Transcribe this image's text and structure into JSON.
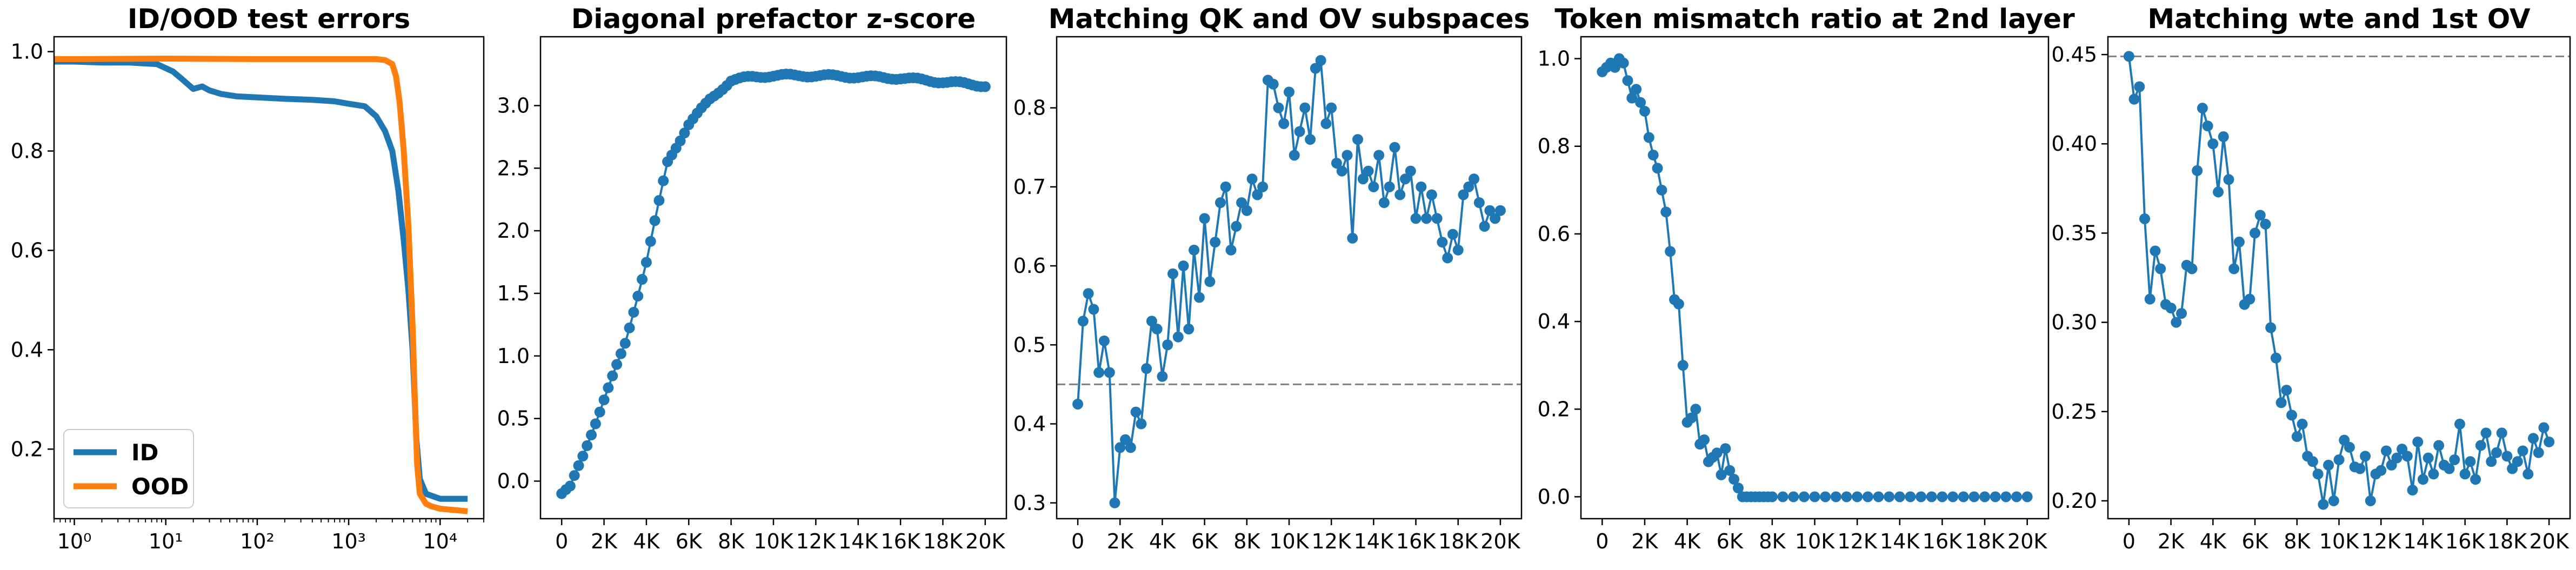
{
  "colors": {
    "blue": "#1f77b4",
    "orange": "#ff7f0e",
    "ref_line": "#7f7f7f"
  },
  "chart_data": [
    {
      "type": "line",
      "title": "ID/OOD test errors",
      "xlabel": "",
      "ylabel": "",
      "xscale": "log",
      "xlim": [
        0.6,
        30000
      ],
      "ylim": [
        0.06,
        1.03
      ],
      "xtick_labels": [
        "10⁰",
        "10¹",
        "10²",
        "10³",
        "10⁴"
      ],
      "xtick_values": [
        1,
        10,
        100,
        1000,
        10000
      ],
      "ytick_labels": [
        "0.2",
        "0.4",
        "0.6",
        "0.8",
        "1.0"
      ],
      "ytick_values": [
        0.2,
        0.4,
        0.6,
        0.8,
        1.0
      ],
      "legend": "lower-left",
      "markers": false,
      "series": [
        {
          "name": "ID",
          "color": "#1f77b4",
          "x": [
            0.6,
            1,
            2,
            4,
            8,
            12,
            15,
            20,
            25,
            30,
            40,
            60,
            100,
            200,
            400,
            700,
            1000,
            1500,
            2000,
            2500,
            3000,
            3500,
            4000,
            4500,
            5000,
            5500,
            6000,
            7000,
            10000,
            20000
          ],
          "y": [
            0.98,
            0.98,
            0.978,
            0.978,
            0.975,
            0.96,
            0.945,
            0.925,
            0.93,
            0.922,
            0.915,
            0.91,
            0.908,
            0.905,
            0.903,
            0.9,
            0.895,
            0.89,
            0.87,
            0.84,
            0.8,
            0.72,
            0.62,
            0.52,
            0.4,
            0.22,
            0.14,
            0.11,
            0.1,
            0.1
          ]
        },
        {
          "name": "OOD",
          "color": "#ff7f0e",
          "x": [
            0.6,
            1,
            10,
            100,
            1000,
            2000,
            2500,
            3000,
            3300,
            3600,
            4000,
            4500,
            5000,
            5300,
            5600,
            6000,
            7000,
            8000,
            10000,
            20000
          ],
          "y": [
            0.985,
            0.985,
            0.986,
            0.985,
            0.985,
            0.985,
            0.983,
            0.975,
            0.95,
            0.9,
            0.8,
            0.65,
            0.45,
            0.3,
            0.17,
            0.11,
            0.09,
            0.085,
            0.08,
            0.075
          ]
        }
      ]
    },
    {
      "type": "line",
      "title": "Diagonal prefactor z-score",
      "xlabel": "",
      "ylabel": "",
      "xlim": [
        -1000,
        21000
      ],
      "ylim": [
        -0.3,
        3.55
      ],
      "xtick_labels": [
        "0",
        "2K",
        "4K",
        "6K",
        "8K",
        "10K",
        "12K",
        "14K",
        "16K",
        "18K",
        "20K"
      ],
      "xtick_values": [
        0,
        2000,
        4000,
        6000,
        8000,
        10000,
        12000,
        14000,
        16000,
        18000,
        20000
      ],
      "ytick_labels": [
        "0.0",
        "0.5",
        "1.0",
        "1.5",
        "2.0",
        "2.5",
        "3.0"
      ],
      "ytick_values": [
        0,
        0.5,
        1,
        1.5,
        2,
        2.5,
        3
      ],
      "markers": true,
      "series": [
        {
          "name": "",
          "color": "#1f77b4",
          "x_range": [
            0,
            20000
          ],
          "x_step": 200,
          "y_anchors": [
            [
              0,
              -0.1
            ],
            [
              400,
              -0.05
            ],
            [
              1000,
              0.2
            ],
            [
              2000,
              0.65
            ],
            [
              3000,
              1.1
            ],
            [
              4000,
              1.75
            ],
            [
              5000,
              2.55
            ],
            [
              6000,
              2.85
            ],
            [
              7000,
              3.05
            ],
            [
              8000,
              3.2
            ],
            [
              9000,
              3.23
            ],
            [
              10000,
              3.24
            ],
            [
              12000,
              3.24
            ],
            [
              14000,
              3.23
            ],
            [
              16000,
              3.22
            ],
            [
              18000,
              3.19
            ],
            [
              20000,
              3.16
            ]
          ]
        }
      ]
    },
    {
      "type": "line",
      "title": "Matching QK and OV subspaces",
      "xlabel": "",
      "ylabel": "",
      "xlim": [
        -1000,
        21000
      ],
      "ylim": [
        0.28,
        0.89
      ],
      "xtick_labels": [
        "0",
        "2K",
        "4K",
        "6K",
        "8K",
        "10K",
        "12K",
        "14K",
        "16K",
        "18K",
        "20K"
      ],
      "xtick_values": [
        0,
        2000,
        4000,
        6000,
        8000,
        10000,
        12000,
        14000,
        16000,
        18000,
        20000
      ],
      "ytick_labels": [
        "0.3",
        "0.4",
        "0.5",
        "0.6",
        "0.7",
        "0.8"
      ],
      "ytick_values": [
        0.3,
        0.4,
        0.5,
        0.6,
        0.7,
        0.8
      ],
      "hline": 0.45,
      "markers": true,
      "series": [
        {
          "name": "",
          "color": "#1f77b4",
          "x": [
            0,
            250,
            500,
            750,
            1000,
            1250,
            1500,
            1750,
            2000,
            2250,
            2500,
            2750,
            3000,
            3250,
            3500,
            3750,
            4000,
            4250,
            4500,
            4750,
            5000,
            5250,
            5500,
            5750,
            6000,
            6250,
            6500,
            6750,
            7000,
            7250,
            7500,
            7750,
            8000,
            8250,
            8500,
            8750,
            9000,
            9250,
            9500,
            9750,
            10000,
            10250,
            10500,
            10750,
            11000,
            11250,
            11500,
            11750,
            12000,
            12250,
            12500,
            12750,
            13000,
            13250,
            13500,
            13750,
            14000,
            14250,
            14500,
            14750,
            15000,
            15250,
            15500,
            15750,
            16000,
            16250,
            16500,
            16750,
            17000,
            17250,
            17500,
            17750,
            18000,
            18250,
            18500,
            18750,
            19000,
            19250,
            19500,
            19750,
            20000
          ],
          "y": [
            0.425,
            0.53,
            0.565,
            0.545,
            0.465,
            0.505,
            0.465,
            0.3,
            0.37,
            0.38,
            0.37,
            0.415,
            0.4,
            0.47,
            0.53,
            0.52,
            0.46,
            0.5,
            0.59,
            0.51,
            0.6,
            0.52,
            0.62,
            0.56,
            0.66,
            0.58,
            0.63,
            0.68,
            0.7,
            0.62,
            0.65,
            0.68,
            0.67,
            0.71,
            0.69,
            0.7,
            0.835,
            0.83,
            0.8,
            0.78,
            0.82,
            0.74,
            0.77,
            0.8,
            0.76,
            0.85,
            0.86,
            0.78,
            0.8,
            0.73,
            0.72,
            0.74,
            0.635,
            0.76,
            0.71,
            0.72,
            0.7,
            0.74,
            0.68,
            0.7,
            0.75,
            0.69,
            0.71,
            0.72,
            0.66,
            0.7,
            0.66,
            0.69,
            0.66,
            0.63,
            0.61,
            0.64,
            0.62,
            0.69,
            0.7,
            0.71,
            0.68,
            0.65,
            0.67,
            0.66,
            0.67
          ]
        }
      ]
    },
    {
      "type": "line",
      "title": "Token mismatch ratio at 2nd layer",
      "xlabel": "",
      "ylabel": "",
      "xlim": [
        -1000,
        21000
      ],
      "ylim": [
        -0.05,
        1.05
      ],
      "xtick_labels": [
        "0",
        "2K",
        "4K",
        "6K",
        "8K",
        "10K",
        "12K",
        "14K",
        "16K",
        "18K",
        "20K"
      ],
      "xtick_values": [
        0,
        2000,
        4000,
        6000,
        8000,
        10000,
        12000,
        14000,
        16000,
        18000,
        20000
      ],
      "ytick_labels": [
        "0.0",
        "0.2",
        "0.4",
        "0.6",
        "0.8",
        "1.0"
      ],
      "ytick_values": [
        0,
        0.2,
        0.4,
        0.6,
        0.8,
        1.0
      ],
      "markers": true,
      "series": [
        {
          "name": "",
          "color": "#1f77b4",
          "x": [
            0,
            200,
            400,
            600,
            800,
            1000,
            1200,
            1400,
            1600,
            1800,
            2000,
            2200,
            2400,
            2600,
            2800,
            3000,
            3200,
            3400,
            3600,
            3800,
            4000,
            4200,
            4400,
            4600,
            4800,
            5000,
            5200,
            5400,
            5600,
            5800,
            6000,
            6200,
            6400,
            6600,
            6800,
            7000,
            7200,
            7400,
            7600,
            7800,
            8000,
            8500,
            9000,
            9500,
            10000,
            10500,
            11000,
            11500,
            12000,
            12500,
            13000,
            13500,
            14000,
            14500,
            15000,
            15500,
            16000,
            16500,
            17000,
            17500,
            18000,
            18500,
            19000,
            19500,
            20000
          ],
          "y": [
            0.97,
            0.98,
            0.99,
            0.98,
            1.0,
            0.99,
            0.95,
            0.91,
            0.93,
            0.9,
            0.88,
            0.82,
            0.78,
            0.75,
            0.7,
            0.65,
            0.56,
            0.45,
            0.44,
            0.3,
            0.17,
            0.18,
            0.2,
            0.12,
            0.13,
            0.08,
            0.09,
            0.1,
            0.05,
            0.11,
            0.06,
            0.04,
            0.02,
            0.0,
            0.0,
            0.0,
            0.0,
            0.0,
            0.0,
            0.0,
            0.0,
            0.0,
            0.0,
            0.0,
            0.0,
            0.0,
            0.0,
            0.0,
            0.0,
            0.0,
            0.0,
            0.0,
            0.0,
            0.0,
            0.0,
            0.0,
            0.0,
            0.0,
            0.0,
            0.0,
            0.0,
            0.0,
            0.0,
            0.0,
            0.0
          ]
        }
      ]
    },
    {
      "type": "line",
      "title": "Matching wte and 1st OV",
      "xlabel": "",
      "ylabel": "",
      "xlim": [
        -1000,
        21000
      ],
      "ylim": [
        0.19,
        0.46
      ],
      "xtick_labels": [
        "0",
        "2K",
        "4K",
        "6K",
        "8K",
        "10K",
        "12K",
        "14K",
        "16K",
        "18K",
        "20K"
      ],
      "xtick_values": [
        0,
        2000,
        4000,
        6000,
        8000,
        10000,
        12000,
        14000,
        16000,
        18000,
        20000
      ],
      "ytick_labels": [
        "0.20",
        "0.25",
        "0.30",
        "0.35",
        "0.40",
        "0.45"
      ],
      "ytick_values": [
        0.2,
        0.25,
        0.3,
        0.35,
        0.4,
        0.45
      ],
      "hline": 0.449,
      "markers": true,
      "series": [
        {
          "name": "",
          "color": "#1f77b4",
          "x": [
            0,
            250,
            500,
            750,
            1000,
            1250,
            1500,
            1750,
            2000,
            2250,
            2500,
            2750,
            3000,
            3250,
            3500,
            3750,
            4000,
            4250,
            4500,
            4750,
            5000,
            5250,
            5500,
            5750,
            6000,
            6250,
            6500,
            6750,
            7000,
            7250,
            7500,
            7750,
            8000,
            8250,
            8500,
            8750,
            9000,
            9250,
            9500,
            9750,
            10000,
            10250,
            10500,
            10750,
            11000,
            11250,
            11500,
            11750,
            12000,
            12250,
            12500,
            12750,
            13000,
            13250,
            13500,
            13750,
            14000,
            14250,
            14500,
            14750,
            15000,
            15250,
            15500,
            15750,
            16000,
            16250,
            16500,
            16750,
            17000,
            17250,
            17500,
            17750,
            18000,
            18250,
            18500,
            18750,
            19000,
            19250,
            19500,
            19750,
            20000
          ],
          "y": [
            0.449,
            0.425,
            0.432,
            0.358,
            0.313,
            0.34,
            0.33,
            0.31,
            0.308,
            0.3,
            0.305,
            0.332,
            0.33,
            0.385,
            0.42,
            0.41,
            0.4,
            0.373,
            0.404,
            0.38,
            0.33,
            0.345,
            0.31,
            0.313,
            0.35,
            0.36,
            0.355,
            0.297,
            0.28,
            0.255,
            0.262,
            0.248,
            0.236,
            0.243,
            0.225,
            0.222,
            0.215,
            0.198,
            0.22,
            0.2,
            0.223,
            0.234,
            0.23,
            0.219,
            0.218,
            0.225,
            0.2,
            0.215,
            0.217,
            0.228,
            0.22,
            0.224,
            0.229,
            0.225,
            0.206,
            0.233,
            0.212,
            0.224,
            0.215,
            0.231,
            0.22,
            0.218,
            0.223,
            0.243,
            0.215,
            0.222,
            0.212,
            0.231,
            0.238,
            0.222,
            0.227,
            0.238,
            0.225,
            0.218,
            0.222,
            0.228,
            0.215,
            0.235,
            0.227,
            0.241,
            0.233
          ]
        }
      ]
    }
  ]
}
